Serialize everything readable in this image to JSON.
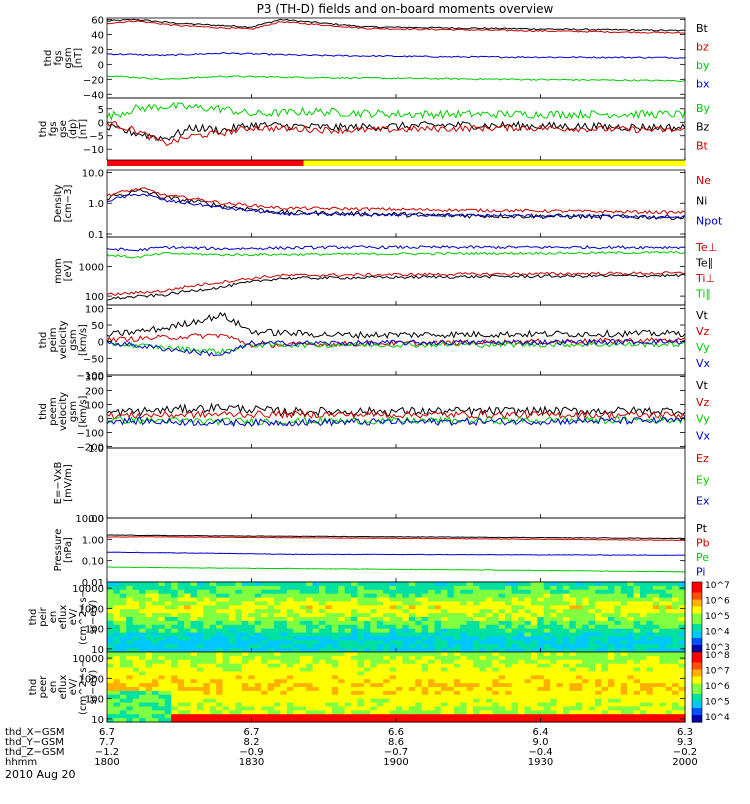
{
  "title": "P3 (TH-D) fields and on-board moments overview",
  "colors": {
    "black": "#000000",
    "red": "#cc0000",
    "green": "#00cc00",
    "blue": "#0000cc",
    "bar_red": "#ff0000",
    "bar_yellow": "#ffff00"
  },
  "panels": [
    {
      "ylabel": [
        "thd",
        "fgs",
        "gsm",
        "[nT]"
      ],
      "ticks": [
        "60",
        "40",
        "20",
        "0",
        "−20",
        "−40"
      ],
      "tickv": [
        60,
        40,
        20,
        0,
        -20,
        -40
      ],
      "ylim": [
        -45,
        62
      ],
      "log": false,
      "legend": [
        {
          "t": "Bt",
          "c": "black"
        },
        {
          "t": "bz",
          "c": "red"
        },
        {
          "t": "by",
          "c": "green"
        },
        {
          "t": "bx",
          "c": "blue"
        }
      ],
      "series": [
        {
          "c": "black",
          "pts": [
            [
              0,
              58
            ],
            [
              0.05,
              60
            ],
            [
              0.12,
              55
            ],
            [
              0.25,
              50
            ],
            [
              0.3,
              60
            ],
            [
              0.45,
              50
            ],
            [
              1,
              45
            ]
          ],
          "noise": 1
        },
        {
          "c": "red",
          "pts": [
            [
              0,
              55
            ],
            [
              0.05,
              58
            ],
            [
              0.12,
              52
            ],
            [
              0.25,
              47
            ],
            [
              0.3,
              57
            ],
            [
              0.45,
              48
            ],
            [
              1,
              42
            ]
          ],
          "noise": 1
        },
        {
          "c": "blue",
          "pts": [
            [
              0,
              14
            ],
            [
              0.1,
              12
            ],
            [
              0.2,
              15
            ],
            [
              0.35,
              12
            ],
            [
              0.6,
              10
            ],
            [
              1,
              9
            ]
          ],
          "noise": 1
        },
        {
          "c": "green",
          "pts": [
            [
              0,
              -15
            ],
            [
              0.1,
              -20
            ],
            [
              0.2,
              -16
            ],
            [
              0.4,
              -18
            ],
            [
              0.7,
              -20
            ],
            [
              1,
              -22
            ]
          ],
          "noise": 1
        }
      ]
    },
    {
      "ylabel": [
        "thd",
        "fgs",
        "gse",
        "(dp)",
        "[nT]"
      ],
      "ticks": [
        "5",
        "0",
        "−5",
        "−10"
      ],
      "tickv": [
        5,
        0,
        -5,
        -10
      ],
      "ylim": [
        -14,
        9
      ],
      "log": false,
      "legend": [
        {
          "t": "By",
          "c": "green"
        },
        {
          "t": "Bz",
          "c": "black"
        },
        {
          "t": "Bt",
          "c": "red"
        }
      ],
      "series": [
        {
          "c": "green",
          "pts": [
            [
              0,
              2
            ],
            [
              0.05,
              5
            ],
            [
              0.1,
              6
            ],
            [
              0.2,
              5
            ],
            [
              0.25,
              3
            ],
            [
              0.35,
              4
            ],
            [
              0.5,
              3
            ],
            [
              1,
              3
            ]
          ],
          "noise": 1.5
        },
        {
          "c": "black",
          "pts": [
            [
              0,
              -2
            ],
            [
              0.05,
              -4
            ],
            [
              0.1,
              -6
            ],
            [
              0.15,
              -2
            ],
            [
              0.2,
              -3
            ],
            [
              0.25,
              -1
            ],
            [
              0.4,
              -2
            ],
            [
              0.6,
              -1
            ],
            [
              1,
              -2
            ]
          ],
          "noise": 1.5
        },
        {
          "c": "red",
          "pts": [
            [
              0,
              0
            ],
            [
              0.05,
              -3
            ],
            [
              0.1,
              -8
            ],
            [
              0.15,
              -5
            ],
            [
              0.2,
              -4
            ],
            [
              0.25,
              -2
            ],
            [
              0.4,
              -3
            ],
            [
              0.7,
              -2
            ],
            [
              1,
              -3
            ]
          ],
          "noise": 1.2
        }
      ]
    },
    {
      "ylabel": [
        "Density",
        "[cm−3]"
      ],
      "ticks": [
        "10.0",
        "1.0",
        "0.1"
      ],
      "tickv": [
        10,
        1,
        0.1
      ],
      "ylim": [
        0.08,
        12
      ],
      "log": true,
      "legend": [
        {
          "t": "Ne",
          "c": "red"
        },
        {
          "t": "Ni",
          "c": "black"
        },
        {
          "t": "Npot",
          "c": "blue"
        }
      ],
      "series": [
        {
          "c": "black",
          "pts": [
            [
              0,
              1.5
            ],
            [
              0.06,
              2.5
            ],
            [
              0.1,
              1.5
            ],
            [
              0.2,
              0.8
            ],
            [
              0.3,
              0.5
            ],
            [
              0.6,
              0.4
            ],
            [
              1,
              0.35
            ]
          ],
          "noise": 0.08
        },
        {
          "c": "red",
          "pts": [
            [
              0,
              1.8
            ],
            [
              0.06,
              3
            ],
            [
              0.1,
              1.8
            ],
            [
              0.2,
              1
            ],
            [
              0.3,
              0.7
            ],
            [
              0.6,
              0.6
            ],
            [
              1,
              0.5
            ]
          ],
          "noise": 0.05
        },
        {
          "c": "blue",
          "pts": [
            [
              0,
              1.2
            ],
            [
              0.06,
              2
            ],
            [
              0.1,
              1.2
            ],
            [
              0.2,
              0.7
            ],
            [
              0.3,
              0.45
            ],
            [
              1,
              0.35
            ]
          ],
          "noise": 0.05
        }
      ]
    },
    {
      "ylabel": [
        "mom",
        "[eV]"
      ],
      "ticks": [
        "1000",
        "100"
      ],
      "tickv": [
        1000,
        100
      ],
      "ylim": [
        50,
        10000
      ],
      "log": true,
      "legend": [
        {
          "t": "Te⊥",
          "c": "red"
        },
        {
          "t": "Te∥",
          "c": "black"
        },
        {
          "t": "Ti⊥",
          "c": "red"
        },
        {
          "t": "Ti∥",
          "c": "green"
        }
      ],
      "series": [
        {
          "c": "blue",
          "pts": [
            [
              0,
              4000
            ],
            [
              0.05,
              3500
            ],
            [
              0.1,
              4500
            ],
            [
              0.2,
              4000
            ],
            [
              0.4,
              4500
            ],
            [
              1,
              4500
            ]
          ],
          "noise": 0.05
        },
        {
          "c": "green",
          "pts": [
            [
              0,
              2500
            ],
            [
              0.05,
              2000
            ],
            [
              0.1,
              2800
            ],
            [
              0.2,
              2500
            ],
            [
              1,
              3000
            ]
          ],
          "noise": 0.04
        },
        {
          "c": "red",
          "pts": [
            [
              0,
              110
            ],
            [
              0.1,
              150
            ],
            [
              0.2,
              300
            ],
            [
              0.3,
              500
            ],
            [
              0.6,
              550
            ],
            [
              1,
              600
            ]
          ],
          "noise": 0.05
        },
        {
          "c": "black",
          "pts": [
            [
              0,
              80
            ],
            [
              0.1,
              110
            ],
            [
              0.2,
              200
            ],
            [
              0.3,
              400
            ],
            [
              0.6,
              450
            ],
            [
              1,
              500
            ]
          ],
          "noise": 0.05
        }
      ]
    },
    {
      "ylabel": [
        "thd",
        "peim",
        "velocity",
        "gsm",
        "[km/s]"
      ],
      "ticks": [
        "100",
        "50",
        "0",
        "−50",
        "−100"
      ],
      "tickv": [
        100,
        50,
        0,
        -50,
        -100
      ],
      "ylim": [
        -100,
        110
      ],
      "log": false,
      "legend": [
        {
          "t": "Vt",
          "c": "black"
        },
        {
          "t": "Vz",
          "c": "red"
        },
        {
          "t": "Vy",
          "c": "green"
        },
        {
          "t": "Vx",
          "c": "blue"
        }
      ],
      "series": [
        {
          "c": "black",
          "pts": [
            [
              0,
              20
            ],
            [
              0.1,
              40
            ],
            [
              0.2,
              80
            ],
            [
              0.25,
              30
            ],
            [
              0.4,
              20
            ],
            [
              1,
              25
            ]
          ],
          "noise": 10
        },
        {
          "c": "red",
          "pts": [
            [
              0,
              5
            ],
            [
              0.2,
              20
            ],
            [
              0.25,
              -10
            ],
            [
              1,
              5
            ]
          ],
          "noise": 8
        },
        {
          "c": "green",
          "pts": [
            [
              0,
              -5
            ],
            [
              0.2,
              -30
            ],
            [
              0.25,
              -10
            ],
            [
              1,
              -8
            ]
          ],
          "noise": 8
        },
        {
          "c": "blue",
          "pts": [
            [
              0,
              -2
            ],
            [
              0.2,
              -40
            ],
            [
              0.25,
              -5
            ],
            [
              1,
              0
            ]
          ],
          "noise": 8
        }
      ]
    },
    {
      "ylabel": [
        "thd",
        "peem",
        "velocity",
        "gsm",
        "[km/s]"
      ],
      "ticks": [
        "300",
        "200",
        "100",
        "0",
        "−100",
        "−200"
      ],
      "tickv": [
        300,
        200,
        100,
        0,
        -100,
        -200
      ],
      "ylim": [
        -210,
        310
      ],
      "log": false,
      "legend": [
        {
          "t": "Vt",
          "c": "black"
        },
        {
          "t": "Vz",
          "c": "red"
        },
        {
          "t": "Vy",
          "c": "green"
        },
        {
          "t": "Vx",
          "c": "blue"
        }
      ],
      "series": [
        {
          "c": "black",
          "pts": [
            [
              0,
              40
            ],
            [
              0.2,
              80
            ],
            [
              0.3,
              50
            ],
            [
              1,
              55
            ]
          ],
          "noise": 30
        },
        {
          "c": "red",
          "pts": [
            [
              0,
              20
            ],
            [
              0.2,
              30
            ],
            [
              1,
              25
            ]
          ],
          "noise": 25
        },
        {
          "c": "green",
          "pts": [
            [
              0,
              -10
            ],
            [
              0.2,
              -20
            ],
            [
              1,
              -10
            ]
          ],
          "noise": 25
        },
        {
          "c": "blue",
          "pts": [
            [
              0,
              -15
            ],
            [
              0.2,
              -30
            ],
            [
              1,
              -15
            ]
          ],
          "noise": 25
        }
      ]
    },
    {
      "ylabel": [
        "E=−VxB",
        "[mV/m]"
      ],
      "ticks": [
        "1.0",
        "0.0"
      ],
      "tickv": [
        1,
        0
      ],
      "ylim": [
        0,
        1
      ],
      "log": false,
      "legend": [
        {
          "t": "Ez",
          "c": "red"
        },
        {
          "t": "Ey",
          "c": "green"
        },
        {
          "t": "Ex",
          "c": "blue"
        }
      ],
      "series": []
    },
    {
      "ylabel": [
        "Pressure",
        "[nPa]"
      ],
      "ticks": [
        "10.00",
        "1.00",
        "0.10",
        "0.01"
      ],
      "tickv": [
        10,
        1,
        0.1,
        0.01
      ],
      "ylim": [
        0.01,
        10
      ],
      "log": true,
      "legend": [
        {
          "t": "Pt",
          "c": "black"
        },
        {
          "t": "Pb",
          "c": "red"
        },
        {
          "t": "Pe",
          "c": "green"
        },
        {
          "t": "Pi",
          "c": "blue"
        }
      ],
      "series": [
        {
          "c": "black",
          "pts": [
            [
              0,
              1.6
            ],
            [
              0.1,
              1.5
            ],
            [
              0.3,
              1.4
            ],
            [
              1,
              1.1
            ]
          ],
          "noise": 0.01
        },
        {
          "c": "red",
          "pts": [
            [
              0,
              1.3
            ],
            [
              0.1,
              1.3
            ],
            [
              0.3,
              1.2
            ],
            [
              1,
              0.9
            ]
          ],
          "noise": 0.01
        },
        {
          "c": "blue",
          "pts": [
            [
              0,
              0.25
            ],
            [
              0.2,
              0.22
            ],
            [
              0.3,
              0.2
            ],
            [
              1,
              0.18
            ]
          ],
          "noise": 0.01
        },
        {
          "c": "green",
          "pts": [
            [
              0,
              0.05
            ],
            [
              0.2,
              0.045
            ],
            [
              1,
              0.03
            ]
          ],
          "noise": 0.01
        }
      ]
    },
    {
      "ylabel": [
        "thd",
        "peir",
        "en",
        "eflux",
        "eV/",
        "(cm^2−s−",
        "sr−eV)"
      ],
      "ticks": [
        "10000",
        "1000",
        "100",
        "10"
      ],
      "tickv": [
        10000,
        1000,
        100,
        10
      ],
      "ylim": [
        7,
        20000
      ],
      "log": true,
      "spectro": true,
      "cbar": [
        "10^7",
        "10^6",
        "10^5",
        "10^4",
        "10^3"
      ]
    },
    {
      "ylabel": [
        "thd",
        "peer",
        "en",
        "eflux",
        "eV/",
        "(cm^2−s−",
        "sr−eV)"
      ],
      "ticks": [
        "10000",
        "1000",
        "100",
        "10"
      ],
      "tickv": [
        10000,
        1000,
        100,
        10
      ],
      "ylim": [
        7,
        20000
      ],
      "log": true,
      "spectro": true,
      "cbar": [
        "10^8",
        "10^7",
        "10^6",
        "10^5",
        "10^4"
      ]
    }
  ],
  "xaxis": {
    "rows": [
      {
        "label": "thd_X−GSM",
        "vals": [
          "6.7",
          "6.7",
          "6.6",
          "6.4",
          "6.3"
        ]
      },
      {
        "label": "thd_Y−GSM",
        "vals": [
          "7.7",
          "8.2",
          "8.6",
          "9.0",
          "9.3"
        ]
      },
      {
        "label": "thd_Z−GSM",
        "vals": [
          "−1.2",
          "−0.9",
          "−0.7",
          "−0.4",
          "−0.2"
        ]
      },
      {
        "label": "hhmm",
        "vals": [
          "1800",
          "1830",
          "1900",
          "1930",
          "2000"
        ]
      }
    ],
    "date": "2010 Aug 20"
  },
  "chart_data": {
    "type": "line",
    "title": "P3 (TH-D) fields and on-board moments overview",
    "x": [
      "1800",
      "1830",
      "1900",
      "1930",
      "2000"
    ],
    "xlabel": "hhmm",
    "date": "2010 Aug 20"
  }
}
